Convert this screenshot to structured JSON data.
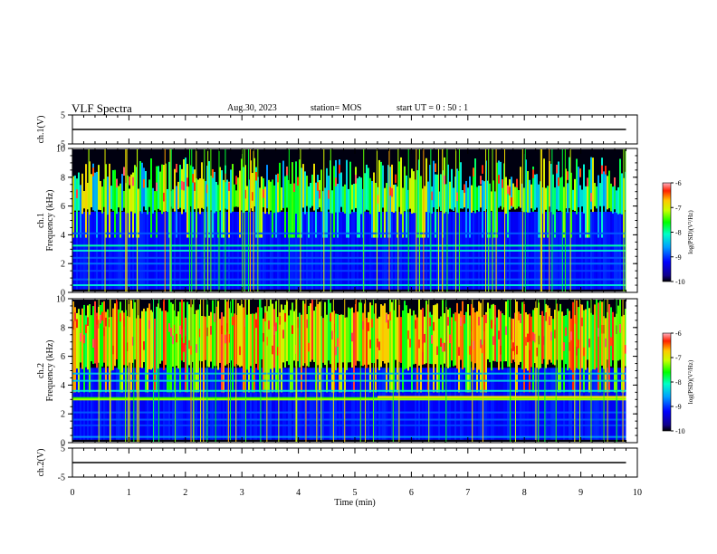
{
  "header": {
    "title": "VLF Spectra",
    "date": "Aug.30, 2023",
    "station": "station= MOS",
    "start_ut": "start  UT =  0 : 50 : 1"
  },
  "chart_data": [
    {
      "type": "line",
      "panel": "ch1-voltage",
      "ylabel": "ch.1(V)",
      "ylim": [
        -5,
        5
      ],
      "yticks": [
        "5",
        "-5"
      ],
      "x": [
        0,
        9.8
      ],
      "y": [
        0,
        0
      ]
    },
    {
      "type": "heatmap",
      "panel": "ch1-spectrogram",
      "ylabel": "ch.1\nFrequency (kHz)",
      "ylim": [
        0,
        10
      ],
      "yticks": [
        "0",
        "2",
        "4",
        "6",
        "8",
        "10"
      ],
      "xlim": [
        0,
        10
      ],
      "data_end_min": 9.8,
      "colorbar": {
        "label": "log(PSD)(V²/Hz)",
        "range": [
          -10,
          -6
        ],
        "ticks": [
          "-6",
          "-7",
          "-8",
          "-9",
          "-10"
        ]
      }
    },
    {
      "type": "heatmap",
      "panel": "ch2-spectrogram",
      "ylabel": "ch.2\nFrequency (kHz)",
      "ylim": [
        0,
        10
      ],
      "yticks": [
        "0",
        "2",
        "4",
        "6",
        "8",
        "10"
      ],
      "xlim": [
        0,
        10
      ],
      "data_end_min": 9.8,
      "colorbar": {
        "label": "log(PSD)(V²/Hz)",
        "range": [
          -10,
          -6
        ],
        "ticks": [
          "-6",
          "-7",
          "-8",
          "-9",
          "-10"
        ]
      }
    },
    {
      "type": "line",
      "panel": "ch2-voltage",
      "ylabel": "ch.2(V)",
      "ylim": [
        -5,
        5
      ],
      "yticks": [
        "5",
        "-5"
      ],
      "x": [
        0,
        9.8
      ],
      "y": [
        0,
        0
      ]
    }
  ],
  "xaxis": {
    "label": "Time  (min)",
    "range": [
      0,
      10
    ],
    "ticks": [
      "0",
      "1",
      "2",
      "3",
      "4",
      "5",
      "6",
      "7",
      "8",
      "9",
      "10"
    ]
  },
  "colors": {
    "spectrum_low": "#000000",
    "spectrum_mid": "#00c0ff",
    "spectrum_high": "#ff0000"
  }
}
